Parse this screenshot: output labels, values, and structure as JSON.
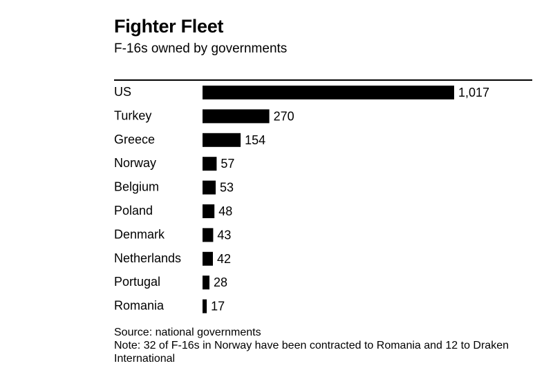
{
  "header": {
    "title": "Fighter Fleet",
    "subtitle": "F-16s owned by governments"
  },
  "chart_data": {
    "type": "bar",
    "orientation": "horizontal",
    "title": "Fighter Fleet",
    "subtitle": "F-16s owned by governments",
    "categories": [
      "US",
      "Turkey",
      "Greece",
      "Norway",
      "Belgium",
      "Poland",
      "Denmark",
      "Netherlands",
      "Portugal",
      "Romania"
    ],
    "values": [
      1017,
      270,
      154,
      57,
      53,
      48,
      43,
      42,
      28,
      17
    ],
    "value_labels": [
      "1,017",
      "270",
      "154",
      "57",
      "53",
      "48",
      "43",
      "42",
      "28",
      "17"
    ],
    "xlim": [
      0,
      1017
    ],
    "xlabel": "",
    "ylabel": "",
    "grid": false,
    "bar_color": "#000000"
  },
  "footer": {
    "source": "Source: national governments",
    "note": "Note: 32 of F-16s in Norway have been contracted to Romania and 12 to Draken International"
  }
}
